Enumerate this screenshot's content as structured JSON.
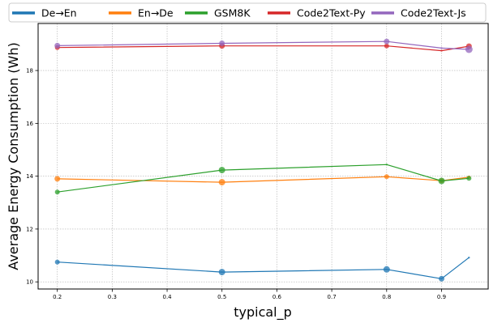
{
  "chart_data": {
    "type": "line",
    "title": "",
    "xlabel": "typical_p",
    "ylabel": "Average Energy Consumption (Wh)",
    "xlim": [
      0.165,
      0.985
    ],
    "ylim": [
      9.73,
      19.78
    ],
    "xticks": [
      0.2,
      0.3,
      0.4,
      0.5,
      0.6,
      0.7,
      0.8,
      0.9
    ],
    "xtick_labels": [
      "0.2",
      "0.3",
      "0.4",
      "0.5",
      "0.6",
      "0.7",
      "0.8",
      "0.9"
    ],
    "yticks": [
      10,
      12,
      14,
      16,
      18
    ],
    "ytick_labels": [
      "10",
      "12",
      "14",
      "16",
      "18"
    ],
    "grid": true,
    "legend_position": "top",
    "x": [
      0.2,
      0.5,
      0.8,
      0.9,
      0.95
    ],
    "series": [
      {
        "name": "De→En",
        "color": "#1f77b4",
        "values": [
          10.75,
          10.37,
          10.47,
          10.12,
          10.92
        ],
        "marker_sizes": [
          3,
          4,
          4,
          3.5,
          1.2
        ]
      },
      {
        "name": "En→De",
        "color": "#ff7f0e",
        "values": [
          13.9,
          13.77,
          13.98,
          13.83,
          13.96
        ],
        "marker_sizes": [
          3.5,
          4,
          3,
          3,
          2
        ]
      },
      {
        "name": "GSM8K",
        "color": "#2ca02c",
        "values": [
          13.4,
          14.23,
          14.44,
          13.82,
          13.92
        ],
        "marker_sizes": [
          3,
          4,
          1.2,
          4,
          3
        ]
      },
      {
        "name": "Code2Text-Py",
        "color": "#d62728",
        "values": [
          18.87,
          18.93,
          18.93,
          18.75,
          18.92
        ],
        "marker_sizes": [
          3,
          3.5,
          3,
          1.2,
          3.5
        ]
      },
      {
        "name": "Code2Text-Js",
        "color": "#9467bd",
        "values": [
          18.94,
          19.03,
          19.1,
          18.85,
          18.8
        ],
        "marker_sizes": [
          3.5,
          3.5,
          3.5,
          1.2,
          4.5
        ]
      }
    ]
  }
}
